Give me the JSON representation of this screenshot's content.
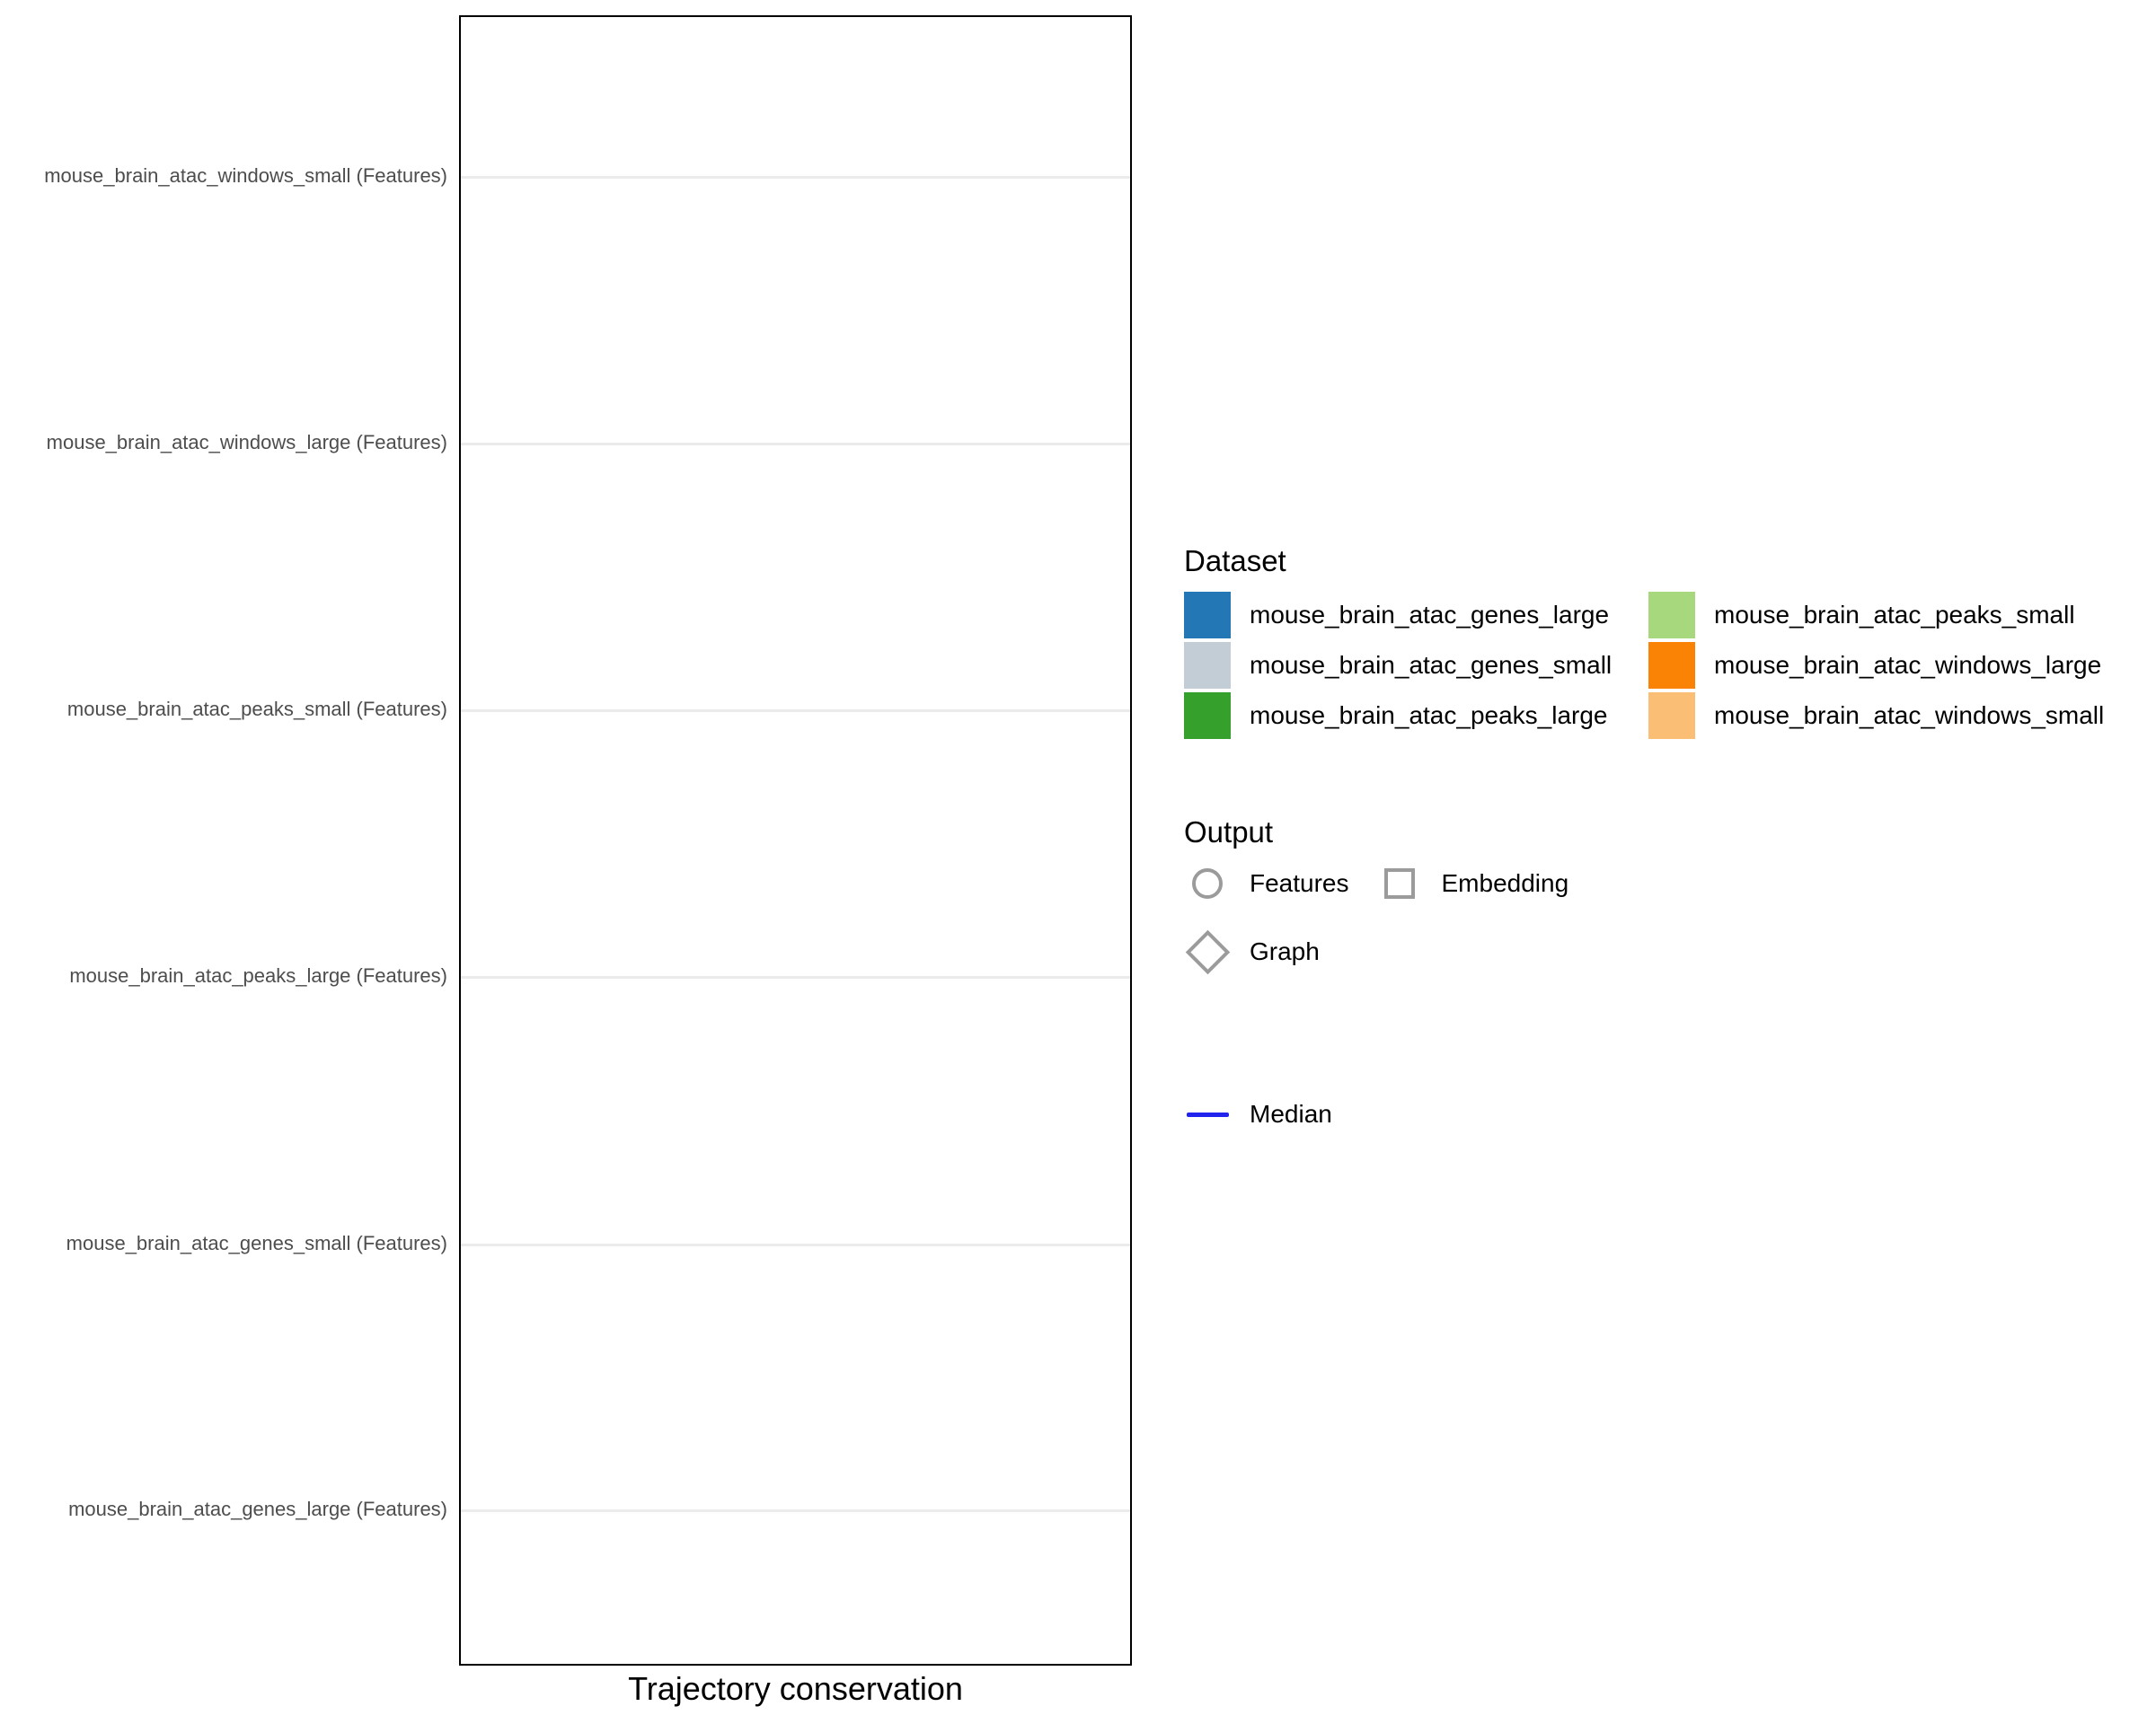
{
  "chart_data": {
    "type": "scatter",
    "title": "",
    "xlabel": "Trajectory conservation",
    "ylabel": "",
    "categories_top_to_bottom": [
      "mouse_brain_atac_windows_small (Features)",
      "mouse_brain_atac_windows_large (Features)",
      "mouse_brain_atac_peaks_small (Features)",
      "mouse_brain_atac_peaks_large (Features)",
      "mouse_brain_atac_genes_small (Features)",
      "mouse_brain_atac_genes_large (Features)"
    ],
    "series": [],
    "points": [],
    "x_tick_labels": [],
    "grid": "horizontal-only",
    "legend_position": "right",
    "panel_border_color": "#000000",
    "gridline_color": "#ebebeb"
  },
  "x_axis": {
    "title": "Trajectory conservation"
  },
  "legend": {
    "dataset": {
      "title": "Dataset",
      "items": [
        {
          "label": "mouse_brain_atac_genes_large",
          "color": "#2277b4"
        },
        {
          "label": "mouse_brain_atac_genes_small",
          "color": "#c3cdd6"
        },
        {
          "label": "mouse_brain_atac_peaks_large",
          "color": "#35a02c"
        },
        {
          "label": "mouse_brain_atac_peaks_small",
          "color": "#a8d87e"
        },
        {
          "label": "mouse_brain_atac_windows_large",
          "color": "#fa8306"
        },
        {
          "label": "mouse_brain_atac_windows_small",
          "color": "#fbbe75"
        }
      ]
    },
    "output": {
      "title": "Output",
      "shape_color": "#9b9b9b",
      "items": [
        {
          "label": "Features",
          "shape": "circle"
        },
        {
          "label": "Embedding",
          "shape": "square"
        },
        {
          "label": "Graph",
          "shape": "diamond"
        }
      ]
    },
    "median": {
      "label": "Median",
      "line_color": "#2323ee"
    }
  }
}
